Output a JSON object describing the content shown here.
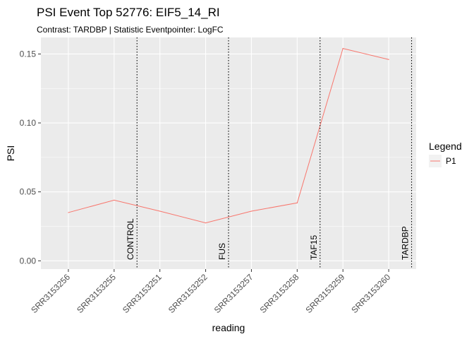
{
  "chart_data": {
    "type": "line",
    "title": "PSI Event Top 52776: EIF5_14_RI",
    "subtitle": "Contrast: TARDBP | Statistic Eventpointer: LogFC",
    "xlabel": "reading",
    "ylabel": "PSI",
    "categories": [
      "SRR3153256",
      "SRR3153255",
      "SRR3153251",
      "SRR3153252",
      "SRR3153257",
      "SRR3153258",
      "SRR3153259",
      "SRR3153260"
    ],
    "series": [
      {
        "name": "P1",
        "values": [
          0.035,
          0.044,
          0.036,
          0.0275,
          0.036,
          0.042,
          0.154,
          0.146
        ],
        "color": "#F8766D"
      }
    ],
    "ylim": [
      -0.006,
      0.162
    ],
    "yticks": [
      0.0,
      0.05,
      0.1,
      0.15
    ],
    "ytick_labels": [
      "0.00",
      "0.05",
      "0.10",
      "0.15"
    ],
    "group_dividers": [
      {
        "label": "CONTROL",
        "after_index": 1.5
      },
      {
        "label": "FUS",
        "after_index": 3.5
      },
      {
        "label": "TAF15",
        "after_index": 5.5
      },
      {
        "label": "TARDBP",
        "after_index": 7.5
      }
    ],
    "legend": {
      "title": "Legend",
      "position": "right"
    },
    "grid": true,
    "panel_background": "#EBEBEB"
  }
}
